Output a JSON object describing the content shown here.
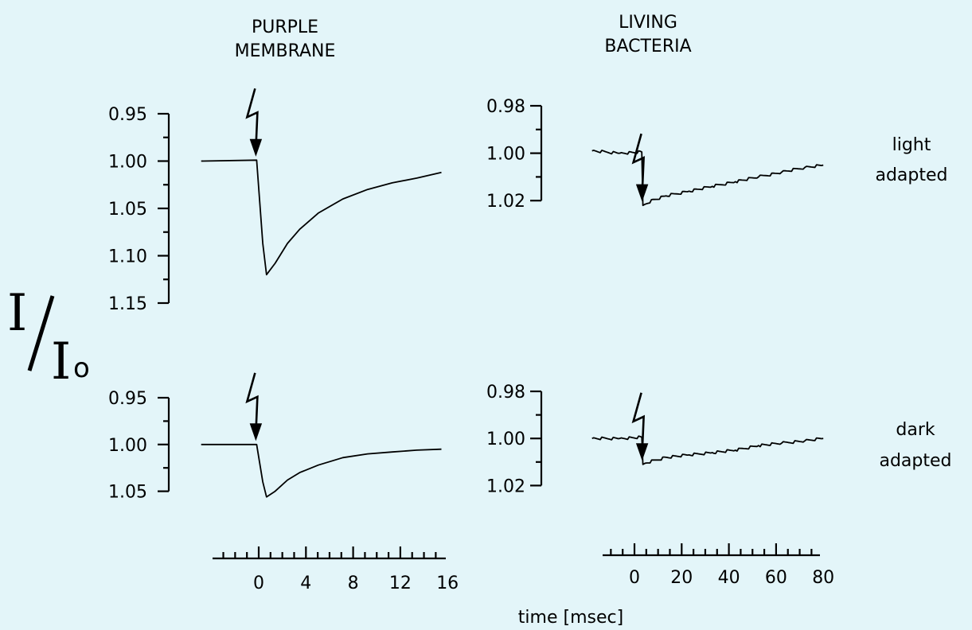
{
  "figure": {
    "col_titles": [
      [
        "PURPLE",
        "MEMBRANE"
      ],
      [
        "LIVING",
        "BACTERIA"
      ]
    ],
    "row_labels": [
      [
        "light",
        "adapted"
      ],
      [
        "dark",
        "adapted"
      ]
    ],
    "ylabel": {
      "numerator": "I",
      "denominator": "I",
      "sub": "o"
    },
    "xlabel": "time  [msec]"
  },
  "chart_data": [
    {
      "type": "line",
      "panel": "purple membrane, light adapted",
      "ylim": [
        1.15,
        0.95
      ],
      "yticks": [
        "0.95",
        "1.00",
        "1.05",
        "1.10",
        "1.15"
      ],
      "xlim": [
        -5,
        16
      ],
      "flash_at": 0,
      "series": [
        {
          "x": [
            -4.5,
            0,
            0.5,
            0.8,
            1.5,
            2.5,
            3.5,
            5,
            7,
            9,
            11,
            13,
            15
          ],
          "y": [
            1.0,
            0.999,
            1.087,
            1.12,
            1.108,
            1.087,
            1.072,
            1.055,
            1.04,
            1.03,
            1.023,
            1.018,
            1.012
          ]
        }
      ]
    },
    {
      "type": "line",
      "panel": "living bacteria, light adapted",
      "ylim": [
        1.03,
        0.98
      ],
      "yticks": [
        "0.98",
        "1.00",
        "1.02"
      ],
      "xlim": [
        -25,
        80
      ],
      "flash_at": 0,
      "series": [
        {
          "x": [
            -22,
            -10,
            -0.5,
            0,
            1,
            5,
            10,
            20,
            30,
            40,
            50,
            60,
            70,
            78
          ],
          "y": [
            0.999,
            1.0,
            0.9995,
            1.022,
            1.0215,
            1.0195,
            1.018,
            1.016,
            1.014,
            1.012,
            1.01,
            1.008,
            1.006,
            1.005
          ]
        }
      ]
    },
    {
      "type": "line",
      "panel": "purple membrane, dark adapted",
      "ylim": [
        1.075,
        0.95
      ],
      "yticks": [
        "0.95",
        "1.00",
        "1.05"
      ],
      "xlim": [
        -5,
        16
      ],
      "flash_at": 0,
      "series": [
        {
          "x": [
            -4.5,
            0,
            0.5,
            0.8,
            1.5,
            2.5,
            3.5,
            5,
            7,
            9,
            11,
            13,
            15
          ],
          "y": [
            1.0,
            1.0,
            1.04,
            1.056,
            1.05,
            1.038,
            1.03,
            1.022,
            1.014,
            1.01,
            1.008,
            1.006,
            1.005
          ]
        }
      ]
    },
    {
      "type": "line",
      "panel": "living bacteria, dark adapted",
      "ylim": [
        1.03,
        0.98
      ],
      "yticks": [
        "0.98",
        "1.00",
        "1.02"
      ],
      "xlim": [
        -25,
        80
      ],
      "flash_at": 0,
      "series": [
        {
          "x": [
            -22,
            -10,
            -0.5,
            0,
            1,
            10,
            20,
            30,
            40,
            50,
            60,
            70,
            78
          ],
          "y": [
            1.0,
            1.0,
            0.9995,
            1.011,
            1.0105,
            1.008,
            1.007,
            1.006,
            1.005,
            1.003,
            1.002,
            1.001,
            1.0
          ]
        }
      ]
    }
  ],
  "x_axes": [
    {
      "panel": "purple membrane",
      "xlim": [
        -5,
        16
      ],
      "tick_labels": [
        "0",
        "4",
        "8",
        "12",
        "16"
      ]
    },
    {
      "panel": "living bacteria",
      "xlim": [
        -25,
        80
      ],
      "tick_labels": [
        "0",
        "20",
        "40",
        "60",
        "80"
      ]
    }
  ]
}
